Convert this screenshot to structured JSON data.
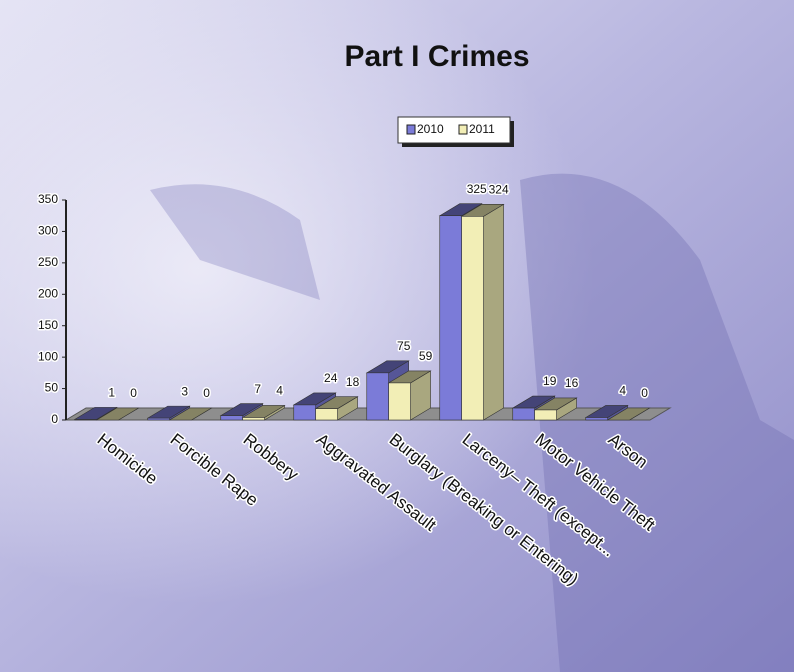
{
  "chart_data": {
    "type": "bar3d",
    "title": "Part I Crimes",
    "categories": [
      "Homicide",
      "Forcible Rape",
      "Robbery",
      "Aggravated Assault",
      "Burglary (Breaking or Entering)",
      "Larceny– Theft (except...",
      "Motor Vehicle Theft",
      "Arson"
    ],
    "series": [
      {
        "name": "2010",
        "color": "#7b7bd8",
        "values": [
          1,
          3,
          7,
          24,
          75,
          325,
          19,
          4
        ]
      },
      {
        "name": "2011",
        "color": "#f2eeb6",
        "values": [
          0,
          0,
          4,
          18,
          59,
          324,
          16,
          0
        ]
      }
    ],
    "ylim": [
      0,
      350
    ],
    "yticks": [
      0,
      50,
      100,
      150,
      200,
      250,
      300,
      350
    ],
    "legend": "top"
  }
}
